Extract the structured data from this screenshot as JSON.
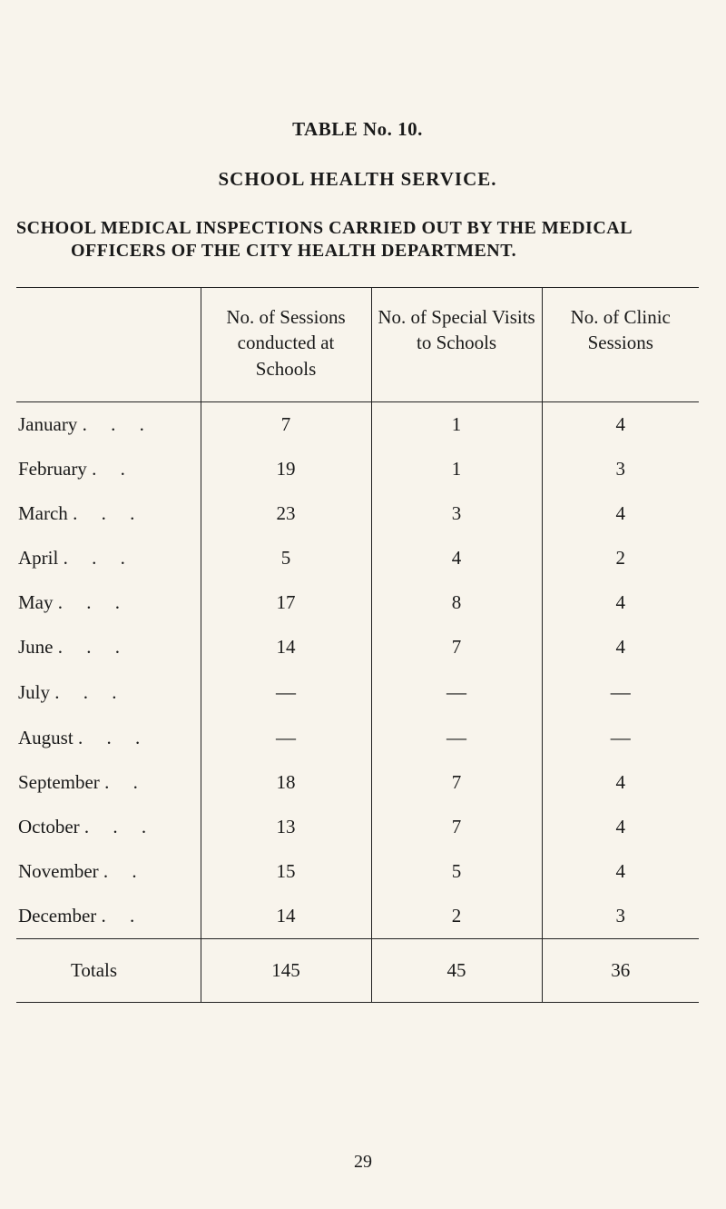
{
  "title_line": "TABLE No. 10.",
  "subtitle": "SCHOOL HEALTH SERVICE.",
  "block_line1": "SCHOOL MEDICAL INSPECTIONS CARRIED OUT BY THE MEDICAL",
  "block_line2": "OFFICERS OF THE CITY HEALTH DEPARTMENT.",
  "columns": {
    "c1": "",
    "c2": "No. of Sessions conducted at Schools",
    "c3": "No. of Special Visits to Schools",
    "c4": "No. of Clinic Sessions"
  },
  "rows": [
    {
      "m": "January",
      "a": "7",
      "b": "1",
      "c": "4"
    },
    {
      "m": "February",
      "a": "19",
      "b": "1",
      "c": "3"
    },
    {
      "m": "March",
      "a": "23",
      "b": "3",
      "c": "4"
    },
    {
      "m": "April",
      "a": "5",
      "b": "4",
      "c": "2"
    },
    {
      "m": "May",
      "a": "17",
      "b": "8",
      "c": "4"
    },
    {
      "m": "June",
      "a": "14",
      "b": "7",
      "c": "4"
    },
    {
      "m": "July",
      "a": "—",
      "b": "—",
      "c": "—"
    },
    {
      "m": "August",
      "a": "—",
      "b": "—",
      "c": "—"
    },
    {
      "m": "September",
      "a": "18",
      "b": "7",
      "c": "4"
    },
    {
      "m": "October",
      "a": "13",
      "b": "7",
      "c": "4"
    },
    {
      "m": "November",
      "a": "15",
      "b": "5",
      "c": "4"
    },
    {
      "m": "December",
      "a": "14",
      "b": "2",
      "c": "3"
    }
  ],
  "totals": {
    "label": "Totals",
    "a": "145",
    "b": "45",
    "c": "36"
  },
  "page_number": "29",
  "style": {
    "background_color": "#f8f4ec",
    "text_color": "#1a1a1a",
    "rule_color": "#222222",
    "body_fontsize": 21,
    "heading_fontsize": 21
  }
}
